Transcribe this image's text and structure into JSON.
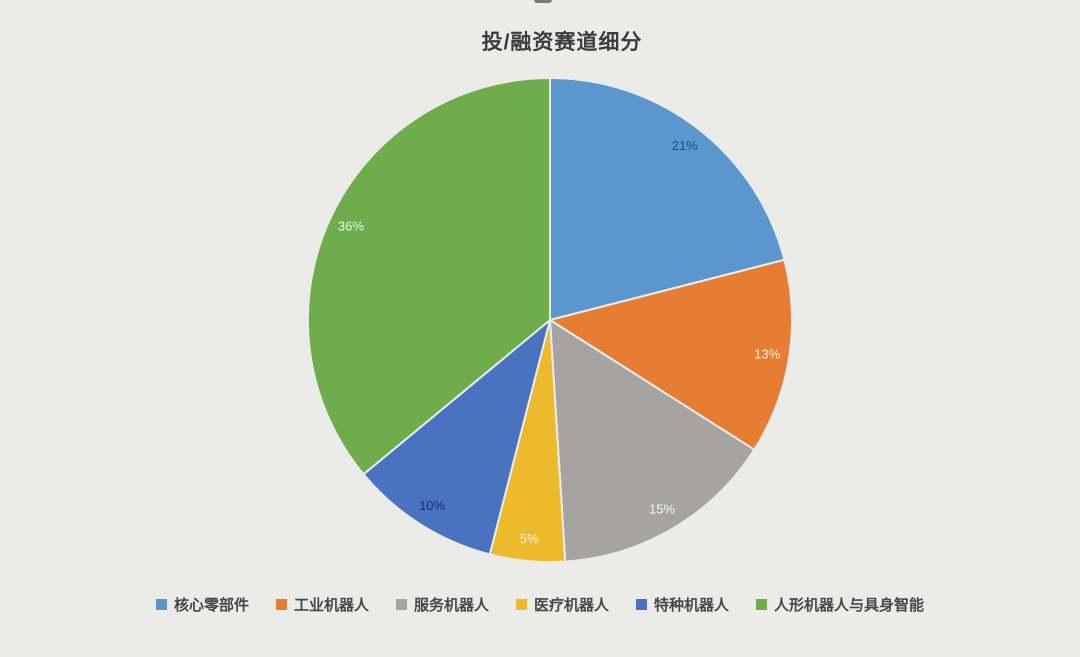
{
  "page": {
    "background": "#ebebea"
  },
  "chart_data": {
    "type": "pie",
    "title": "投/融资赛道细分",
    "categories": [
      "核心零部件",
      "工业机器人",
      "服务机器人",
      "医疗机器人",
      "特种机器人",
      "人形机器人与具身智能"
    ],
    "values": [
      21,
      13,
      15,
      5,
      10,
      36
    ],
    "labels": [
      "21%",
      "13%",
      "15%",
      "5%",
      "10%",
      "36%"
    ],
    "colors": [
      "#5b96cf",
      "#e57e33",
      "#a5a4a3",
      "#edb92d",
      "#4973c0",
      "#6fac4b"
    ],
    "label_colors": [
      "#1e4e79",
      "#f8f0e6",
      "#f4f4f2",
      "#f8f3e2",
      "#1d3160",
      "#eef5e8"
    ],
    "title_color": "#3c3c3c",
    "legend_text_color": "#474747",
    "start_angle_deg": 0,
    "direction": "clockwise",
    "legend_position": "bottom",
    "data_labels": "percent",
    "grid": false
  }
}
